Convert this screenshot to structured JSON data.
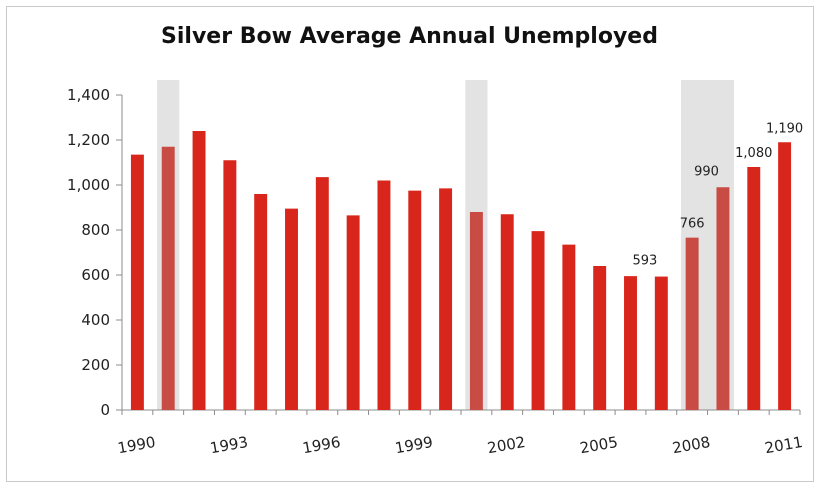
{
  "chart_data": {
    "type": "bar",
    "title": "Silver Bow Average Annual Unemployed",
    "xlabel": "",
    "ylabel": "",
    "ylim": [
      0,
      1400
    ],
    "yticks": [
      0,
      200,
      400,
      600,
      800,
      1000,
      1200,
      1400
    ],
    "ytick_labels": [
      "0",
      "200",
      "400",
      "600",
      "800",
      "1,000",
      "1,200",
      "1,400"
    ],
    "categories": [
      "1990",
      "1991",
      "1992",
      "1993",
      "1994",
      "1995",
      "1996",
      "1997",
      "1998",
      "1999",
      "2000",
      "2001",
      "2002",
      "2003",
      "2004",
      "2005",
      "2006",
      "2007",
      "2008",
      "2009",
      "2010",
      "2011"
    ],
    "xtick_labels_shown": [
      "1990",
      "1993",
      "1996",
      "1999",
      "2002",
      "2005",
      "2008",
      "2011"
    ],
    "values": [
      1135,
      1170,
      1240,
      1110,
      960,
      895,
      1035,
      865,
      1020,
      975,
      985,
      880,
      870,
      795,
      735,
      640,
      595,
      593,
      766,
      990,
      1080,
      1190
    ],
    "data_labels": [
      {
        "category": "2007",
        "text": "593"
      },
      {
        "category": "2008",
        "text": "766"
      },
      {
        "category": "2009",
        "text": "990"
      },
      {
        "category": "2010",
        "text": "1,080"
      },
      {
        "category": "2011",
        "text": "1,190"
      }
    ],
    "shaded_periods": [
      {
        "from": "1991",
        "to": "1991"
      },
      {
        "from": "2001",
        "to": "2001"
      },
      {
        "from": "2008",
        "to": "2009"
      }
    ],
    "colors": {
      "bar": "#d9261c",
      "bar_shaded": "#c84b44",
      "shade": "#e3e3e3",
      "axis": "#8c8c8c"
    },
    "grid": false,
    "legend": "none"
  }
}
